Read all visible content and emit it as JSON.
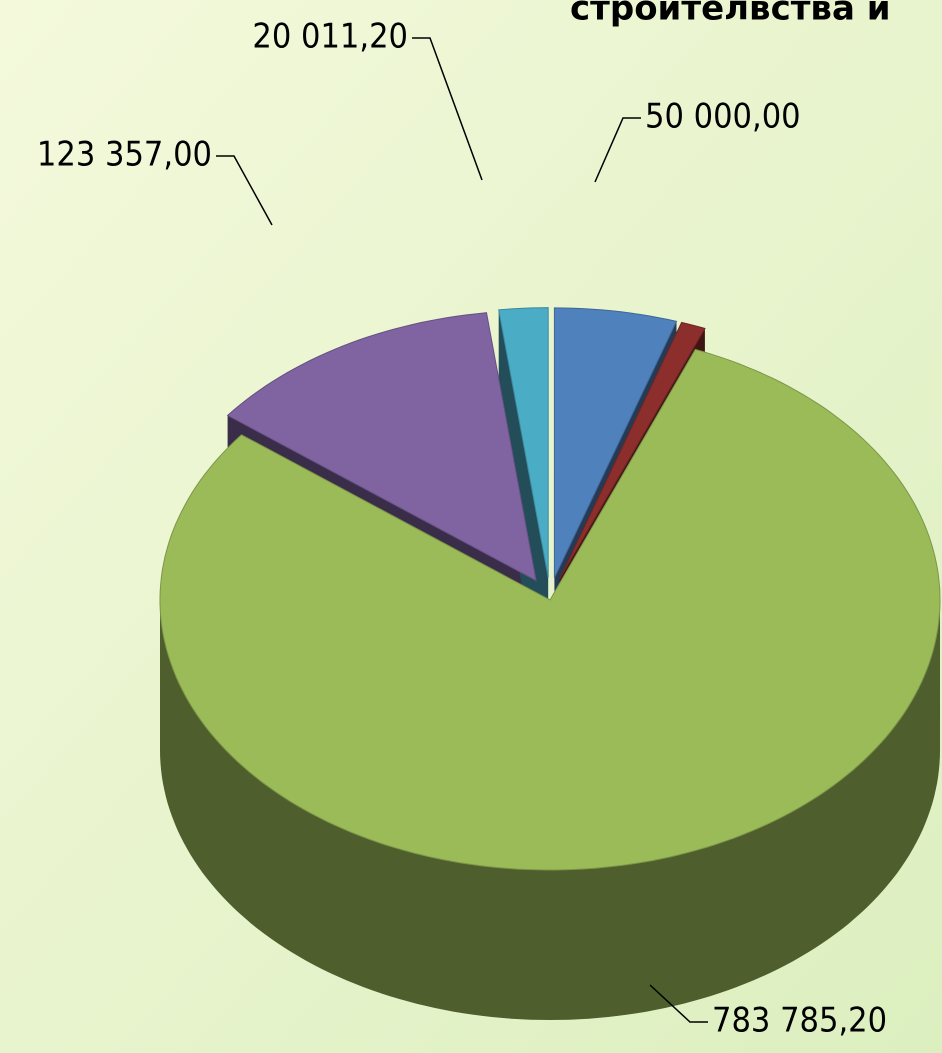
{
  "chart_data": {
    "type": "pie",
    "title": "строителвства и",
    "values": [
      50000,
      10000,
      783785.2,
      123357,
      20011.2
    ],
    "value_labels": [
      "50 000,00",
      null,
      "783 785,20",
      "123 357,00",
      "20 011,20"
    ],
    "colors": [
      "#4f81bd",
      "#8b2e2c",
      "#9bbb59",
      "#8064a2",
      "#4bacc6"
    ]
  }
}
